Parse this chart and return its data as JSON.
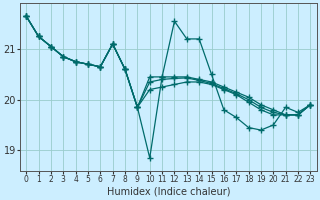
{
  "xlabel": "Humidex (Indice chaleur)",
  "background_color": "#cceeff",
  "line_color": "#006b6b",
  "grid_color": "#99cccc",
  "x_ticks": [
    0,
    1,
    2,
    3,
    4,
    5,
    6,
    7,
    8,
    9,
    10,
    11,
    12,
    13,
    14,
    15,
    16,
    17,
    18,
    19,
    20,
    21,
    22,
    23
  ],
  "y_ticks": [
    19,
    20,
    21
  ],
  "xlim": [
    -0.5,
    23.5
  ],
  "ylim": [
    18.6,
    21.9
  ],
  "series": [
    [
      21.65,
      21.25,
      21.05,
      20.85,
      20.75,
      20.7,
      20.65,
      21.1,
      20.6,
      19.85,
      18.85,
      20.45,
      21.55,
      21.2,
      21.2,
      20.5,
      19.8,
      19.65,
      19.45,
      19.4,
      19.5,
      19.85,
      19.75,
      19.9
    ],
    [
      21.65,
      21.25,
      21.05,
      20.85,
      20.75,
      20.7,
      20.65,
      21.1,
      20.6,
      19.85,
      20.45,
      20.45,
      20.45,
      20.45,
      20.4,
      20.35,
      20.25,
      20.15,
      20.05,
      19.9,
      19.8,
      19.7,
      19.7,
      19.9
    ],
    [
      21.65,
      21.25,
      21.05,
      20.85,
      20.75,
      20.7,
      20.65,
      21.1,
      20.6,
      19.85,
      20.2,
      20.25,
      20.3,
      20.35,
      20.35,
      20.3,
      20.2,
      20.1,
      19.95,
      19.8,
      19.7,
      19.7,
      19.7,
      19.9
    ],
    [
      21.65,
      21.25,
      21.05,
      20.85,
      20.75,
      20.7,
      20.65,
      21.1,
      20.6,
      19.85,
      20.35,
      20.4,
      20.42,
      20.43,
      20.38,
      20.32,
      20.22,
      20.12,
      20.0,
      19.85,
      19.75,
      19.7,
      19.7,
      19.9
    ]
  ]
}
